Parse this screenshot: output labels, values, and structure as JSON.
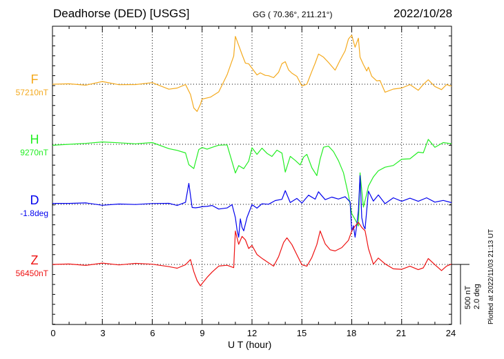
{
  "header": {
    "station": "Deadhorse (DED)  [USGS]",
    "coords": "GG ( 70.36°, 211.21°)",
    "date": "2022/10/28"
  },
  "scale": {
    "nt": "500 nT",
    "deg": "2.0 deg"
  },
  "plotted": "Plotted at 2022/11/03 21:13 UT",
  "colors": {
    "F": "#f4a91c",
    "H": "#22ee22",
    "D": "#0000ee",
    "Z": "#ee1111"
  },
  "chart_data": {
    "type": "line",
    "xlabel": "U T (hour)",
    "xlim": [
      0,
      24
    ],
    "xticks": [
      "0",
      "3",
      "6",
      "9",
      "12",
      "15",
      "18",
      "21",
      "24"
    ],
    "grid": true,
    "y_scale_note": "500 nT / 2.0 deg per scale bar",
    "series": [
      {
        "name": "F",
        "baseline": "57210nT",
        "color": "#f4a91c",
        "x": [
          0,
          1,
          2,
          3,
          4,
          5,
          6,
          7,
          7.5,
          8.0,
          8.3,
          8.5,
          8.7,
          8.9,
          9.0,
          9.5,
          10.0,
          10.5,
          10.9,
          11.0,
          11.2,
          11.4,
          11.6,
          11.8,
          12.0,
          12.3,
          12.5,
          12.8,
          13.0,
          13.3,
          13.6,
          13.8,
          14.0,
          14.2,
          14.4,
          14.7,
          15.0,
          15.3,
          15.6,
          15.8,
          16.0,
          16.3,
          16.6,
          17.0,
          17.3,
          17.6,
          17.8,
          18.0,
          18.2,
          18.4,
          18.5,
          18.7,
          18.9,
          19.0,
          19.2,
          19.5,
          19.7,
          20.0,
          20.5,
          21.0,
          21.5,
          22.0,
          22.3,
          22.6,
          23.0,
          23.4,
          23.7,
          24.0
        ],
        "y": [
          0,
          2,
          0,
          4,
          -2,
          -2,
          2,
          -6,
          -4,
          0,
          -16,
          -36,
          -40,
          -28,
          -20,
          -18,
          -12,
          12,
          40,
          70,
          58,
          44,
          30,
          28,
          22,
          14,
          18,
          14,
          12,
          8,
          16,
          30,
          34,
          22,
          16,
          10,
          -4,
          0,
          20,
          32,
          44,
          38,
          30,
          20,
          36,
          50,
          66,
          70,
          52,
          66,
          40,
          30,
          20,
          24,
          10,
          4,
          6,
          -10,
          -6,
          -6,
          -2,
          -10,
          0,
          8,
          -2,
          -8,
          -2,
          -4
        ]
      },
      {
        "name": "H",
        "baseline": "9270nT",
        "color": "#22ee22",
        "x": [
          0,
          1,
          2,
          3,
          4,
          5,
          6,
          7,
          7.5,
          8.0,
          8.2,
          8.5,
          8.8,
          9.0,
          9.3,
          9.6,
          10.0,
          10.5,
          11.0,
          11.2,
          11.5,
          11.8,
          12.0,
          12.3,
          12.6,
          12.9,
          13.2,
          13.5,
          13.8,
          14.0,
          14.3,
          14.6,
          14.9,
          15.1,
          15.3,
          15.6,
          15.9,
          16.1,
          16.3,
          16.6,
          16.9,
          17.2,
          17.5,
          17.8,
          18.0,
          18.2,
          18.4,
          18.5,
          18.7,
          18.9,
          19.0,
          19.3,
          19.6,
          20.0,
          20.5,
          21.0,
          21.5,
          22.0,
          22.3,
          22.6,
          23.0,
          23.5,
          24.0
        ],
        "y": [
          0,
          0,
          0,
          2,
          2,
          2,
          4,
          -6,
          -10,
          -14,
          -30,
          -34,
          -6,
          -4,
          -8,
          -6,
          -2,
          0,
          -40,
          -30,
          -36,
          -26,
          -6,
          -14,
          -4,
          -12,
          -18,
          -10,
          -14,
          -40,
          -16,
          -22,
          -30,
          -20,
          -16,
          -34,
          -44,
          -20,
          -4,
          -4,
          -12,
          -24,
          -40,
          -72,
          -100,
          -110,
          -120,
          -42,
          -90,
          -70,
          -60,
          -48,
          -40,
          -34,
          -30,
          -20,
          -20,
          -12,
          -14,
          6,
          -4,
          4,
          2
        ]
      },
      {
        "name": "D",
        "baseline": "-1.8deg",
        "color": "#0000ee",
        "x": [
          0,
          1,
          2,
          3,
          4,
          5,
          6,
          7,
          7.5,
          8.0,
          8.2,
          8.4,
          8.6,
          8.8,
          9.0,
          9.3,
          9.6,
          10.0,
          10.5,
          10.8,
          11.0,
          11.1,
          11.2,
          11.3,
          11.4,
          11.5,
          11.7,
          12.0,
          12.3,
          12.6,
          13.0,
          13.4,
          13.8,
          14.0,
          14.3,
          14.7,
          15.0,
          15.4,
          15.8,
          16.0,
          16.4,
          16.8,
          17.2,
          17.6,
          17.9,
          18.0,
          18.1,
          18.2,
          18.3,
          18.4,
          18.5,
          18.6,
          18.7,
          18.8,
          19.0,
          19.3,
          19.6,
          20.0,
          20.5,
          21.0,
          21.5,
          22.0,
          22.5,
          23.0,
          23.5,
          24.0
        ],
        "y": [
          0,
          0,
          2,
          0,
          2,
          0,
          0,
          0,
          -2,
          4,
          32,
          -4,
          -6,
          -6,
          -4,
          -2,
          0,
          -6,
          -6,
          -2,
          -20,
          -36,
          -46,
          -20,
          -34,
          -40,
          -20,
          0,
          -4,
          2,
          0,
          4,
          6,
          20,
          4,
          10,
          2,
          12,
          6,
          18,
          8,
          12,
          8,
          10,
          2,
          -40,
          -30,
          -46,
          -30,
          -10,
          40,
          -20,
          -30,
          -34,
          20,
          4,
          12,
          0,
          10,
          6,
          10,
          4,
          8,
          2,
          6,
          4
        ]
      },
      {
        "name": "Z",
        "baseline": "56450nT",
        "color": "#ee1111",
        "x": [
          0,
          1,
          2,
          3,
          4,
          5,
          6,
          7,
          7.5,
          8.0,
          8.3,
          8.5,
          8.7,
          8.9,
          9.0,
          9.3,
          9.6,
          10.0,
          10.5,
          10.9,
          11.0,
          11.2,
          11.4,
          11.6,
          11.8,
          12.0,
          12.3,
          12.6,
          13.0,
          13.3,
          13.6,
          13.9,
          14.1,
          14.4,
          14.7,
          15.0,
          15.3,
          15.6,
          15.9,
          16.1,
          16.4,
          16.7,
          17.0,
          17.4,
          17.8,
          18.0,
          18.2,
          18.4,
          18.6,
          18.8,
          19.0,
          19.3,
          19.6,
          20.0,
          20.5,
          21.0,
          21.5,
          22.0,
          22.3,
          22.6,
          23.0,
          23.4,
          23.7,
          24.0
        ],
        "y": [
          0,
          2,
          0,
          2,
          -2,
          0,
          0,
          -2,
          -4,
          0,
          6,
          -12,
          -24,
          -30,
          -26,
          -18,
          -12,
          -4,
          -2,
          -4,
          50,
          30,
          40,
          34,
          22,
          28,
          16,
          10,
          2,
          -4,
          10,
          32,
          40,
          30,
          14,
          -2,
          -4,
          10,
          30,
          50,
          30,
          20,
          18,
          24,
          36,
          50,
          56,
          60,
          52,
          48,
          24,
          2,
          10,
          0,
          -8,
          -8,
          -2,
          -6,
          -4,
          8,
          -2,
          -10,
          -2,
          2
        ]
      }
    ]
  }
}
